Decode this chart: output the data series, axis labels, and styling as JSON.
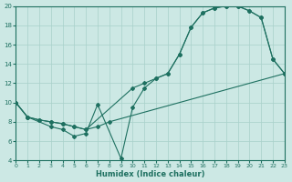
{
  "xlabel": "Humidex (Indice chaleur)",
  "bg_color": "#cce8e4",
  "grid_color": "#a8d0ca",
  "line_color": "#1e7060",
  "xlim": [
    0,
    23
  ],
  "ylim": [
    4,
    20
  ],
  "xticks": [
    0,
    1,
    2,
    3,
    4,
    5,
    6,
    7,
    8,
    9,
    10,
    11,
    12,
    13,
    14,
    15,
    16,
    17,
    18,
    19,
    20,
    21,
    22,
    23
  ],
  "yticks": [
    4,
    6,
    8,
    10,
    12,
    14,
    16,
    18,
    20
  ],
  "line1_x": [
    0,
    1,
    3,
    4,
    5,
    6,
    7,
    9,
    10,
    11,
    12,
    13,
    14,
    15,
    16,
    17,
    18,
    19,
    20,
    21,
    22,
    23
  ],
  "line1_y": [
    10,
    8.5,
    7.5,
    7.2,
    6.5,
    6.8,
    9.8,
    4.2,
    9.5,
    11.5,
    12.5,
    13.0,
    15.0,
    17.8,
    19.3,
    19.8,
    20.0,
    20.0,
    19.5,
    18.8,
    14.5,
    13.0
  ],
  "line2_x": [
    0,
    1,
    2,
    3,
    4,
    5,
    6,
    10,
    11,
    12,
    13,
    14,
    15,
    16,
    17,
    18,
    19,
    20,
    21,
    22,
    23
  ],
  "line2_y": [
    10,
    8.5,
    8.2,
    8.0,
    7.8,
    7.5,
    7.2,
    11.5,
    12.0,
    12.5,
    13.0,
    15.0,
    17.8,
    19.3,
    19.8,
    20.0,
    20.0,
    19.5,
    18.8,
    14.5,
    13.0
  ],
  "line3_x": [
    0,
    1,
    2,
    3,
    4,
    5,
    6,
    7,
    8,
    23
  ],
  "line3_y": [
    10,
    8.5,
    8.2,
    8.0,
    7.8,
    7.5,
    7.2,
    7.5,
    8.0,
    13.0
  ]
}
